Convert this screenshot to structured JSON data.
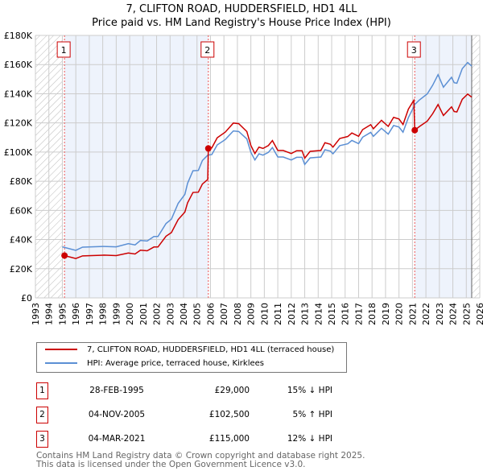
{
  "chart_data": {
    "type": "line",
    "title": "7, CLIFTON ROAD, HUDDERSFIELD, HD1 4LL",
    "subtitle": "Price paid vs. HM Land Registry's House Price Index (HPI)",
    "xlim": [
      1993,
      2026
    ],
    "ylim": [
      0,
      180000
    ],
    "x_ticks": [
      "1993",
      "1994",
      "1995",
      "1996",
      "1997",
      "1998",
      "1999",
      "2000",
      "2001",
      "2002",
      "2003",
      "2004",
      "2005",
      "2006",
      "2007",
      "2008",
      "2009",
      "2010",
      "2011",
      "2012",
      "2013",
      "2014",
      "2015",
      "2016",
      "2017",
      "2018",
      "2019",
      "2020",
      "2021",
      "2022",
      "2023",
      "2024",
      "2025",
      "2026"
    ],
    "y_ticks": [
      {
        "v": 0,
        "label": "£0"
      },
      {
        "v": 20000,
        "label": "£20K"
      },
      {
        "v": 40000,
        "label": "£40K"
      },
      {
        "v": 60000,
        "label": "£60K"
      },
      {
        "v": 80000,
        "label": "£80K"
      },
      {
        "v": 100000,
        "label": "£100K"
      },
      {
        "v": 120000,
        "label": "£120K"
      },
      {
        "v": 140000,
        "label": "£140K"
      },
      {
        "v": 160000,
        "label": "£160K"
      },
      {
        "v": 180000,
        "label": "£180K"
      }
    ],
    "grid": true,
    "hatched_ranges": [
      [
        1993,
        1995
      ],
      [
        2025.4,
        2026
      ]
    ],
    "shaded_ranges": [
      [
        1995.16,
        2005.84
      ],
      [
        2021.17,
        2025.4
      ]
    ],
    "series": [
      {
        "name": "7, CLIFTON ROAD, HUDDERSFIELD, HD1 4LL (terraced house)",
        "color": "#cc0000",
        "x": [
          1995.16,
          1996.0,
          1996.5,
          1998.1,
          1999,
          1999.9,
          2000.4,
          2000.8,
          2001.3,
          2001.8,
          2002.1,
          2002.7,
          2003.1,
          2003.6,
          2004.1,
          2004.3,
          2004.7,
          2005.1,
          2005.4,
          2005.8,
          2005.84,
          2006.1,
          2006.5,
          2007.1,
          2007.7,
          2008.1,
          2008.7,
          2009.0,
          2009.3,
          2009.6,
          2009.9,
          2010.3,
          2010.6,
          2011,
          2011.4,
          2012,
          2012.4,
          2012.8,
          2013,
          2013.4,
          2014.2,
          2014.5,
          2014.9,
          2015.1,
          2015.6,
          2016.2,
          2016.5,
          2017,
          2017.3,
          2017.9,
          2018.1,
          2018.7,
          2019.2,
          2019.6,
          2020,
          2020.3,
          2020.7,
          2021.1,
          2021.17,
          2021.5,
          2022.1,
          2022.5,
          2022.9,
          2023.3,
          2023.9,
          2024.1,
          2024.3,
          2024.7,
          2025.1,
          2025.4
        ],
        "y": [
          29000,
          27000,
          28800,
          29300,
          29000,
          30800,
          30100,
          32700,
          32300,
          34900,
          34900,
          42300,
          44800,
          53700,
          58900,
          65200,
          72300,
          72500,
          78100,
          81200,
          102500,
          102900,
          109800,
          113700,
          119900,
          119500,
          114100,
          104500,
          99000,
          103400,
          102500,
          104500,
          107900,
          101100,
          101100,
          99000,
          100900,
          100900,
          95800,
          100500,
          101100,
          106400,
          105400,
          103400,
          109300,
          110700,
          113100,
          110800,
          115400,
          118800,
          116000,
          121800,
          117600,
          123800,
          122700,
          118900,
          129500,
          135500,
          115000,
          117400,
          121200,
          126300,
          132600,
          125100,
          131000,
          127800,
          127500,
          136200,
          139800,
          137700
        ]
      },
      {
        "name": "HPI: Average price, terraced house, Kirklees",
        "color": "#5b8fd4",
        "x": [
          1995.0,
          1996.0,
          1996.5,
          1998.1,
          1999,
          1999.9,
          2000.4,
          2000.8,
          2001.3,
          2001.8,
          2002.1,
          2002.7,
          2003.1,
          2003.6,
          2004.1,
          2004.3,
          2004.7,
          2005.1,
          2005.4,
          2005.8,
          2006.1,
          2006.5,
          2007.1,
          2007.7,
          2008.1,
          2008.7,
          2009.0,
          2009.3,
          2009.6,
          2009.9,
          2010.3,
          2010.6,
          2011,
          2011.4,
          2012,
          2012.4,
          2012.8,
          2013,
          2013.4,
          2014.2,
          2014.5,
          2014.9,
          2015.1,
          2015.6,
          2016.2,
          2016.5,
          2017,
          2017.3,
          2017.9,
          2018.1,
          2018.7,
          2019.2,
          2019.6,
          2020,
          2020.3,
          2020.7,
          2021.2,
          2021.5,
          2022.1,
          2022.5,
          2022.9,
          2023.3,
          2023.9,
          2024.1,
          2024.3,
          2024.7,
          2025.1,
          2025.4
        ],
        "y": [
          35000,
          32600,
          34800,
          35300,
          35000,
          37200,
          36300,
          39400,
          39000,
          42100,
          42100,
          51000,
          54000,
          64800,
          71000,
          78600,
          87200,
          87400,
          94200,
          97900,
          98300,
          104900,
          108600,
          114500,
          114100,
          109000,
          99800,
          94600,
          98800,
          97900,
          99800,
          103100,
          96600,
          96600,
          94600,
          96400,
          96400,
          91500,
          96000,
          96600,
          101600,
          100700,
          98800,
          104400,
          105700,
          108000,
          105800,
          110200,
          113500,
          110800,
          116300,
          112300,
          118200,
          117200,
          113600,
          123700,
          132900,
          135600,
          139900,
          145800,
          153100,
          144500,
          151300,
          147600,
          147200,
          157200,
          161400,
          159000
        ]
      }
    ],
    "sales": [
      {
        "n": "1",
        "x": 1995.16,
        "y": 29000,
        "date": "28-FEB-1995",
        "price": "£29,000",
        "hpi": "15% ↓ HPI"
      },
      {
        "n": "2",
        "x": 2005.84,
        "y": 102500,
        "date": "04-NOV-2005",
        "price": "£102,500",
        "hpi": "5% ↑ HPI"
      },
      {
        "n": "3",
        "x": 2021.17,
        "y": 115000,
        "date": "04-MAR-2021",
        "price": "£115,000",
        "hpi": "12% ↓ HPI"
      }
    ],
    "legend_placement": "below"
  },
  "footer": [
    "Contains HM Land Registry data © Crown copyright and database right 2025.",
    "This data is licensed under the Open Government Licence v3.0."
  ]
}
